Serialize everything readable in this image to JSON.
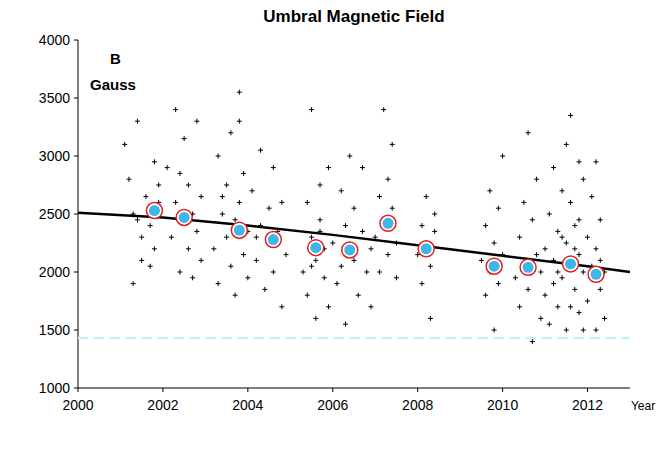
{
  "chart_data": {
    "type": "scatter",
    "title": "Umbral Magnetic Field",
    "annotations": [
      "B",
      "Gauss"
    ],
    "x_label": "Year",
    "xlim": [
      2000,
      2013
    ],
    "xticks": [
      2000,
      2002,
      2004,
      2006,
      2008,
      2010,
      2012
    ],
    "ylim": [
      1000,
      4000
    ],
    "yticks": [
      1000,
      1500,
      2000,
      2500,
      3000,
      3500,
      4000
    ],
    "grid": false,
    "series": [
      {
        "type": "scatter",
        "marker": "plus",
        "color": "#000000",
        "x": [
          2001.1,
          2001.2,
          2001.3,
          2001.3,
          2001.4,
          2001.5,
          2001.5,
          2001.6,
          2001.7,
          2001.8,
          2001.8,
          2001.9,
          2001.9,
          2001.7,
          2001.4,
          2002.1,
          2002.2,
          2002.3,
          2002.3,
          2002.4,
          2002.5,
          2002.5,
          2002.6,
          2002.6,
          2002.7,
          2002.7,
          2002.8,
          2002.8,
          2002.9,
          2002.9,
          2002.4,
          2003.2,
          2003.3,
          2003.3,
          2003.4,
          2003.5,
          2003.5,
          2003.6,
          2003.6,
          2003.7,
          2003.7,
          2003.8,
          2003.8,
          2003.9,
          2003.9,
          2004.0,
          2004.0,
          2003.4,
          2003.8,
          2004.1,
          2004.2,
          2004.3,
          2004.3,
          2004.4,
          2004.5,
          2004.5,
          2004.6,
          2004.6,
          2004.7,
          2004.8,
          2004.8,
          2004.9,
          2004.2,
          2005.3,
          2005.4,
          2005.4,
          2005.5,
          2005.5,
          2005.6,
          2005.6,
          2005.7,
          2005.7,
          2005.8,
          2005.8,
          2005.9,
          2005.9,
          2005.5,
          2005.7,
          2006.0,
          2006.1,
          2006.2,
          2006.3,
          2006.3,
          2006.4,
          2006.5,
          2006.5,
          2006.6,
          2006.7,
          2006.7,
          2006.8,
          2006.9,
          2006.9,
          2006.2,
          2007.0,
          2007.1,
          2007.1,
          2007.2,
          2007.2,
          2007.3,
          2007.3,
          2007.4,
          2007.4,
          2007.5,
          2007.5,
          2008.0,
          2008.1,
          2008.1,
          2008.2,
          2008.2,
          2008.3,
          2008.3,
          2008.4,
          2008.4,
          2009.5,
          2009.6,
          2009.6,
          2009.7,
          2009.7,
          2009.8,
          2009.8,
          2009.9,
          2009.9,
          2010.0,
          2010.0,
          2010.3,
          2010.4,
          2010.4,
          2010.5,
          2010.5,
          2010.6,
          2010.6,
          2010.7,
          2010.7,
          2010.8,
          2010.8,
          2010.9,
          2010.9,
          2011.0,
          2011.1,
          2011.1,
          2011.2,
          2011.2,
          2011.3,
          2011.3,
          2011.4,
          2011.4,
          2011.5,
          2011.5,
          2011.5,
          2011.6,
          2011.6,
          2011.6,
          2011.7,
          2011.7,
          2011.8,
          2011.8,
          2011.8,
          2011.9,
          2011.9,
          2011.9,
          2011.3,
          2011.7,
          2011.2,
          2011.6,
          2011.4,
          2011.8,
          2011.0,
          2012.0,
          2012.0,
          2012.1,
          2012.1,
          2012.2,
          2012.2,
          2012.2,
          2012.3,
          2012.3,
          2012.4,
          2012.4,
          2012.1,
          2012.3
        ],
        "values": [
          3100,
          2800,
          2500,
          1900,
          3300,
          2300,
          2100,
          2650,
          2400,
          2950,
          2200,
          2600,
          2750,
          2050,
          2450,
          2900,
          2300,
          3400,
          2600,
          2000,
          3150,
          2450,
          2200,
          2750,
          1950,
          2500,
          3300,
          2350,
          2100,
          2650,
          2850,
          2200,
          3000,
          1900,
          2500,
          2300,
          2750,
          2050,
          3200,
          2450,
          1800,
          3550,
          2600,
          2150,
          2850,
          2350,
          1950,
          2650,
          3300,
          2700,
          2100,
          2400,
          3050,
          1850,
          2250,
          2550,
          2900,
          2000,
          2350,
          1700,
          2600,
          2150,
          2300,
          2000,
          2600,
          1800,
          3400,
          2300,
          2100,
          1600,
          2450,
          2750,
          1950,
          2200,
          2900,
          1700,
          2050,
          2350,
          2250,
          1900,
          2700,
          1550,
          2400,
          3000,
          2100,
          2550,
          1800,
          2350,
          2900,
          2000,
          2200,
          1700,
          2050,
          2300,
          2650,
          2000,
          3400,
          2450,
          2150,
          2800,
          2550,
          3100,
          2250,
          1950,
          2150,
          2400,
          1900,
          2650,
          2250,
          1600,
          2050,
          2350,
          2500,
          2100,
          1800,
          2400,
          2000,
          2700,
          1500,
          2250,
          1900,
          2550,
          2150,
          3000,
          1950,
          2300,
          1700,
          2600,
          2050,
          3200,
          1850,
          2450,
          1400,
          2150,
          2800,
          1600,
          2000,
          1800,
          2500,
          1550,
          2900,
          2100,
          1700,
          2350,
          2700,
          1950,
          3100,
          2250,
          1500,
          3350,
          2050,
          2600,
          1850,
          2400,
          2950,
          2150,
          1650,
          2800,
          2000,
          1500,
          2000,
          2200,
          1900,
          1700,
          2300,
          2450,
          2200,
          2300,
          1750,
          2650,
          2050,
          1500,
          2950,
          2200,
          1850,
          2450,
          2000,
          1600,
          1950,
          2100
        ]
      },
      {
        "type": "scatter",
        "marker": "circle",
        "color": "#3fb6e8",
        "x": [
          2001.8,
          2002.5,
          2003.8,
          2004.6,
          2005.6,
          2006.4,
          2007.3,
          2008.2,
          2009.8,
          2010.6,
          2011.6,
          2012.2
        ],
        "values": [
          2530,
          2470,
          2360,
          2280,
          2210,
          2190,
          2420,
          2200,
          2050,
          2040,
          2070,
          1980
        ]
      },
      {
        "type": "line",
        "color": "#000000",
        "x": [
          2000,
          2002,
          2004,
          2006,
          2008,
          2010,
          2012,
          2013
        ],
        "values": [
          2510,
          2470,
          2400,
          2320,
          2230,
          2140,
          2050,
          2000
        ]
      },
      {
        "type": "line",
        "line_style": "dashed",
        "color": "#c6f0f5",
        "x": [
          2000,
          2013
        ],
        "values": [
          1430,
          1430
        ]
      }
    ]
  }
}
